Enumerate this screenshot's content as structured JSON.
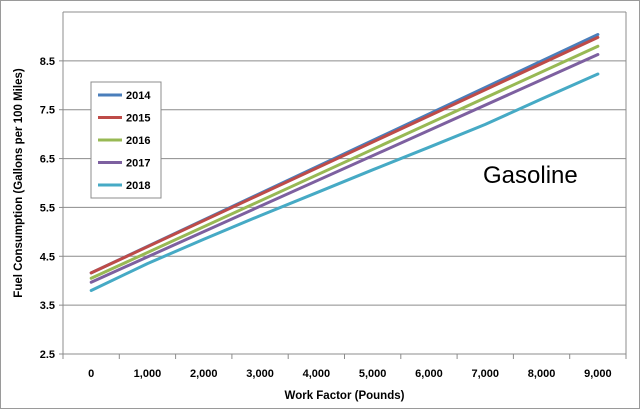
{
  "chart_data": {
    "type": "line",
    "title": "",
    "xlabel": "Work Factor (Pounds)",
    "ylabel": "Fuel Consumption  (Gallons per 100 Miles)",
    "xlim": [
      -500,
      9500
    ],
    "ylim": [
      2.5,
      9.5
    ],
    "x_ticks": [
      0,
      1000,
      2000,
      3000,
      4000,
      5000,
      6000,
      7000,
      8000,
      9000
    ],
    "x_tick_labels": [
      "0",
      "1,000",
      "2,000",
      "3,000",
      "4,000",
      "5,000",
      "6,000",
      "7,000",
      "8,000",
      "9,000"
    ],
    "y_ticks": [
      2.5,
      3.5,
      4.5,
      5.5,
      6.5,
      7.5,
      8.5
    ],
    "y_tick_labels": [
      "2.5",
      "3.5",
      "4.5",
      "5.5",
      "6.5",
      "7.5",
      "8.5"
    ],
    "grid": true,
    "legend_position": "left",
    "annotation": "Gasoline",
    "series": [
      {
        "name": "2014",
        "color": "#4a7ebb",
        "x": [
          0,
          9000
        ],
        "y": [
          4.16,
          9.04
        ]
      },
      {
        "name": "2015",
        "color": "#be4b48",
        "x": [
          0,
          9000
        ],
        "y": [
          4.16,
          8.98
        ]
      },
      {
        "name": "2016",
        "color": "#98b954",
        "x": [
          0,
          9000
        ],
        "y": [
          4.05,
          8.8
        ]
      },
      {
        "name": "2017",
        "color": "#7d60a0",
        "x": [
          0,
          9000
        ],
        "y": [
          3.97,
          8.63
        ]
      },
      {
        "name": "2018",
        "color": "#46aac5",
        "x": [
          0,
          1000,
          2000,
          3000,
          4000,
          5000,
          6000,
          7000,
          8000,
          9000
        ],
        "y": [
          3.8,
          4.35,
          4.85,
          5.33,
          5.8,
          6.27,
          6.73,
          7.2,
          7.72,
          8.23
        ]
      }
    ]
  }
}
